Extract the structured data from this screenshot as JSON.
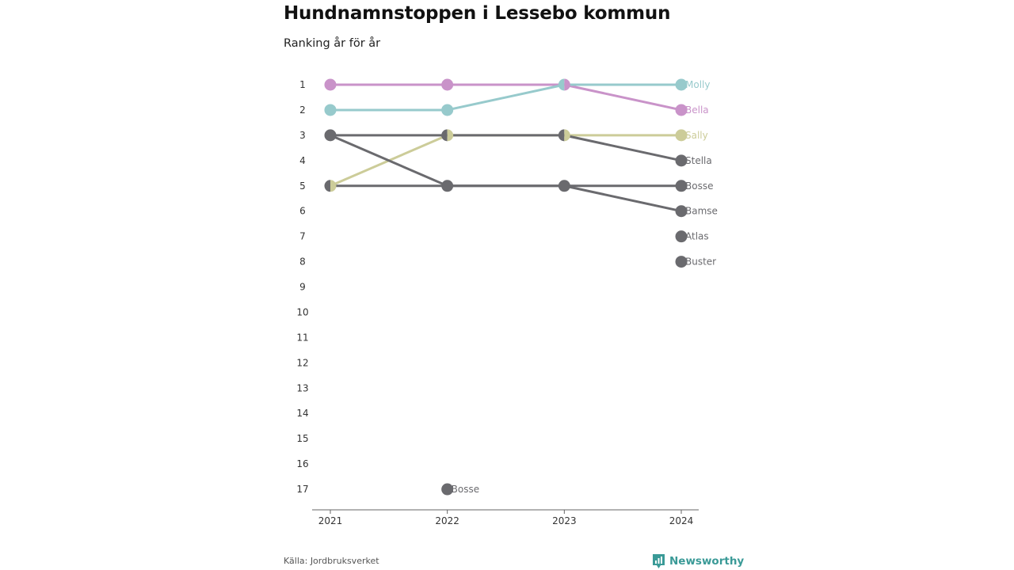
{
  "title": "Hundnamnstoppen i Lessebo kommun",
  "subtitle": "Ranking år för år",
  "source": "Källa: Jordbruksverket",
  "brand": "Newsworthy",
  "colors": {
    "pink": "#c993c9",
    "teal": "#97cacc",
    "olive": "#cccc99",
    "gray": "#6a6a6e",
    "brand": "#3a9a97"
  },
  "chart_data": {
    "type": "line",
    "x": [
      "2021",
      "2022",
      "2023",
      "2024"
    ],
    "y_ticks": [
      "1",
      "2",
      "3",
      "4",
      "5",
      "6",
      "7",
      "8",
      "9",
      "10",
      "11",
      "12",
      "13",
      "14",
      "15",
      "16",
      "17"
    ],
    "ylim": [
      1,
      17
    ],
    "y_inverted": true,
    "grid": false,
    "end_labels": [
      "Molly",
      "Bella",
      "Sally",
      "Stella",
      "Bosse",
      "Bamse",
      "Atlas",
      "Buster"
    ],
    "series": [
      {
        "name": "Bella",
        "color": "#c993c9",
        "values": [
          1,
          1,
          1,
          2
        ]
      },
      {
        "name": "Molly",
        "color": "#97cacc",
        "values": [
          2,
          2,
          1,
          1
        ]
      },
      {
        "name": "Sally",
        "color": "#cccc99",
        "values": [
          5,
          3,
          3,
          3
        ]
      },
      {
        "name": "Stella",
        "color": "#6a6a6e",
        "values": [
          3,
          3,
          3,
          4
        ]
      },
      {
        "name": "Bamse",
        "color": "#6a6a6e",
        "values": [
          3,
          5,
          5,
          6
        ]
      },
      {
        "name": "Bosse",
        "color": "#6a6a6e",
        "values": [
          5,
          5,
          5,
          5
        ]
      },
      {
        "name": "Atlas",
        "color": "#6a6a6e",
        "values": [
          null,
          null,
          null,
          7
        ]
      },
      {
        "name": "Buster",
        "color": "#6a6a6e",
        "values": [
          null,
          null,
          null,
          8
        ]
      }
    ],
    "annotations": [
      {
        "text": "Bosse",
        "x": "2022",
        "y": 17,
        "color": "#6a6a6e"
      }
    ]
  }
}
